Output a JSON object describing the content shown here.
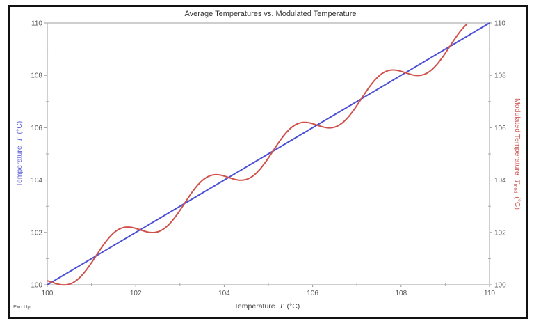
{
  "chart_data": {
    "type": "line",
    "title": "Average Temperatures vs. Modulated Temperature",
    "xlabel": "Temperature  T  (°C)",
    "ylabel": "Temperature  T  (°C)",
    "y2label": "Modulated Temperature  T_mod  (°C)",
    "xlim": [
      100,
      110
    ],
    "ylim": [
      100,
      110
    ],
    "y2lim": [
      100,
      110
    ],
    "x_ticks": [
      "100",
      "102",
      "104",
      "106",
      "108",
      "110"
    ],
    "y_ticks": [
      "100",
      "102",
      "104",
      "106",
      "108",
      "110"
    ],
    "y2_ticks": [
      "100",
      "102",
      "104",
      "106",
      "108",
      "110"
    ],
    "minor_ticks": [
      101,
      103,
      105,
      107,
      109
    ],
    "grid": false,
    "legend": null,
    "annotation": "Exo Up",
    "series": [
      {
        "name": "Average Temperature T",
        "axis": "left",
        "color": "#4a4fd6",
        "x": [
          100,
          102,
          104,
          106,
          108,
          110
        ],
        "y": [
          100,
          102,
          104,
          106,
          108,
          110
        ]
      },
      {
        "name": "Modulated Temperature T_mod",
        "axis": "right",
        "color": "#d0504a",
        "formula": "T_mod = T - 0.5*sin(pi*(T - 100.1))",
        "amplitude": 0.5,
        "period": 2,
        "x": [
          100,
          100.5,
          101,
          101.5,
          102,
          102.5,
          103,
          103.5,
          104,
          104.5,
          105,
          105.5,
          106,
          106.5,
          107,
          107.5,
          108,
          108.5,
          109,
          109.5,
          109.65
        ],
        "y": [
          100.15,
          100.02,
          100.85,
          101.98,
          102.15,
          102.02,
          102.85,
          103.98,
          104.15,
          104.02,
          104.85,
          105.98,
          106.15,
          106.02,
          106.85,
          107.98,
          108.15,
          108.02,
          108.85,
          109.98,
          110.0
        ]
      }
    ]
  },
  "labels": {
    "title": "Average Temperatures vs. Modulated Temperature",
    "xlabel_prefix": "Temperature",
    "xlabel_var": "T",
    "xlabel_unit": "(°C)",
    "ylabel_prefix": "Temperature",
    "ylabel_var": "T",
    "ylabel_unit": "(°C)",
    "y2label_prefix": "Modulated Temperature",
    "y2label_var": "T",
    "y2label_sub": "mod",
    "y2label_unit": "(°C)",
    "exo": "Exo Up"
  },
  "colors": {
    "avg": "#4a4fd6",
    "mod": "#d0504a",
    "axis": "#bdbdbd"
  }
}
